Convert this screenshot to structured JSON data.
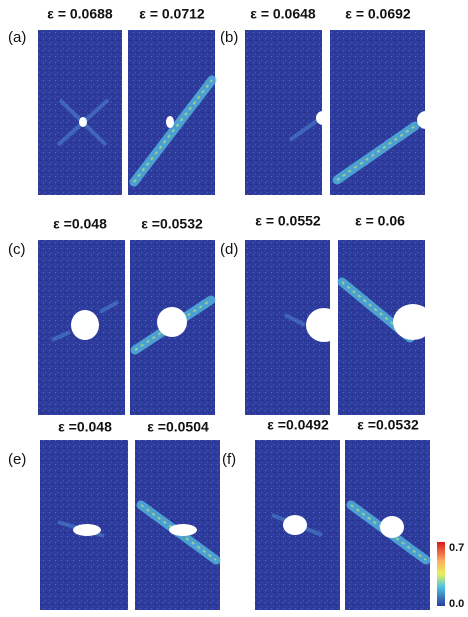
{
  "panels": [
    {
      "label": "(a)",
      "strains": [
        "ε = 0.0688",
        "ε = 0.0712"
      ]
    },
    {
      "label": "(b)",
      "strains": [
        "ε = 0.0648",
        "ε = 0.0692"
      ]
    },
    {
      "label": "(c)",
      "strains": [
        "ε =0.048",
        "ε =0.0532"
      ]
    },
    {
      "label": "(d)",
      "strains": [
        "ε = 0.0552",
        "ε = 0.06"
      ]
    },
    {
      "label": "(e)",
      "strains": [
        "ε =0.048",
        "ε =0.0504"
      ]
    },
    {
      "label": "(f)",
      "strains": [
        "ε =0.0492",
        "ε =0.0532"
      ]
    }
  ],
  "colorbar": {
    "max_label": "0.7",
    "min_label": "0.0"
  }
}
